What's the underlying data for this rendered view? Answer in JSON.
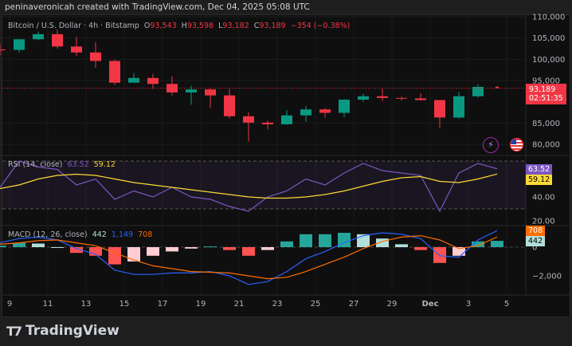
{
  "credit": "peninaveronicah created with TradingView.com, Dec 04, 2025 05:08 UTC",
  "symbol": {
    "name": "Bitcoin / U.S. Dollar · 4h · Bitstamp",
    "o_label": "O",
    "o": "93,543",
    "h_label": "H",
    "h": "93,598",
    "l_label": "L",
    "l": "93,182",
    "c_label": "C",
    "c": "93,189",
    "change": "−354 (−0.38%)"
  },
  "price_tag": {
    "price": "93,189",
    "countdown": "02:51:35"
  },
  "rsi_legend": {
    "label": "RSI (14, close)",
    "rsi": "63.52",
    "ma": "59.12"
  },
  "macd_legend": {
    "label": "MACD (12, 26, close)",
    "hist": "442",
    "macd": "1,149",
    "signal": "708"
  },
  "tags": {
    "rsi": "63.52",
    "rsi_ma": "59.12",
    "signal": "708",
    "hist": "442"
  },
  "logo": "TradingView",
  "colors": {
    "up": "#089981",
    "down": "#f23645",
    "rsi": "#7e57c2",
    "rsi_ma": "#fdd835",
    "macd": "#2962ff",
    "signal": "#ff6d00"
  },
  "icons": [
    "lightning-alert-icon",
    "us-flag-icon"
  ],
  "chart_data": [
    {
      "type": "candlestick",
      "title": "Bitcoin / U.S. Dollar · 4h · Bitstamp",
      "price_ticks": [
        "110,000",
        "105,000",
        "100,000",
        "95,000",
        "85,000",
        "80,000"
      ],
      "x_ticks": [
        "9",
        "11",
        "13",
        "15",
        "17",
        "19",
        "21",
        "23",
        "25",
        "27",
        "29",
        "Dec",
        "3",
        "5"
      ],
      "ylim": [
        80000,
        110000
      ],
      "dates": [
        "Nov 8",
        "Nov 9",
        "Nov 10",
        "Nov 11",
        "Nov 12",
        "Nov 13",
        "Nov 14",
        "Nov 15",
        "Nov 16",
        "Nov 17",
        "Nov 18",
        "Nov 19",
        "Nov 20",
        "Nov 21",
        "Nov 22",
        "Nov 23",
        "Nov 24",
        "Nov 25",
        "Nov 26",
        "Nov 27",
        "Nov 28",
        "Nov 29",
        "Nov 30",
        "Dec 1",
        "Dec 2",
        "Dec 3",
        "Dec 4"
      ],
      "ohlc": [
        [
          102300,
          103500,
          101000,
          102200
        ],
        [
          102200,
          104800,
          101500,
          104700
        ],
        [
          104700,
          106500,
          104500,
          105900
        ],
        [
          105900,
          107000,
          102500,
          103000
        ],
        [
          103000,
          105300,
          100800,
          101600
        ],
        [
          101600,
          104000,
          98000,
          99600
        ],
        [
          99600,
          99900,
          94000,
          94500
        ],
        [
          94500,
          96800,
          94500,
          95600
        ],
        [
          95600,
          96600,
          93000,
          94200
        ],
        [
          94200,
          96000,
          91500,
          92200
        ],
        [
          92200,
          93800,
          89300,
          92900
        ],
        [
          92900,
          93200,
          88500,
          91500
        ],
        [
          91500,
          93000,
          86100,
          86600
        ],
        [
          86600,
          87500,
          80600,
          85100
        ],
        [
          85100,
          85600,
          83500,
          84700
        ],
        [
          84700,
          88000,
          84600,
          86800
        ],
        [
          86800,
          89000,
          85300,
          88200
        ],
        [
          88200,
          88500,
          86300,
          87400
        ],
        [
          87400,
          90600,
          86400,
          90500
        ],
        [
          90500,
          91900,
          90000,
          91300
        ],
        [
          91300,
          93000,
          90200,
          90900
        ],
        [
          90900,
          91200,
          90300,
          90800
        ],
        [
          90800,
          92000,
          90300,
          90400
        ],
        [
          90400,
          90400,
          83800,
          86300
        ],
        [
          86300,
          92300,
          86000,
          91300
        ],
        [
          91300,
          94100,
          91000,
          93500
        ],
        [
          93543,
          93598,
          93182,
          93189
        ]
      ]
    },
    {
      "type": "line",
      "title": "RSI (14, close)",
      "yticks": [
        "40.00",
        "20.00"
      ],
      "bands": [
        70,
        30
      ],
      "series": [
        {
          "name": "RSI",
          "values": [
            48,
            70,
            65,
            63,
            50,
            55,
            38,
            45,
            40,
            48,
            40,
            38,
            32,
            28,
            40,
            45,
            55,
            50,
            60,
            68,
            62,
            60,
            58,
            28,
            60,
            68,
            63.52
          ]
        },
        {
          "name": "MA",
          "values": [
            47,
            50,
            55,
            58,
            59,
            58,
            55,
            52,
            50,
            48,
            46,
            44,
            42,
            40,
            39,
            39,
            40,
            42,
            45,
            49,
            53,
            56,
            57,
            53,
            52,
            55,
            59.12
          ]
        }
      ]
    },
    {
      "type": "line",
      "title": "MACD (12, 26, close)",
      "yticks": [
        "0",
        "−2,000"
      ],
      "series": [
        {
          "name": "MACD",
          "values": [
            300,
            600,
            700,
            500,
            -100,
            -500,
            -1600,
            -1900,
            -1900,
            -1800,
            -1800,
            -1700,
            -2000,
            -2600,
            -2400,
            -1700,
            -800,
            -300,
            300,
            800,
            1000,
            900,
            600,
            -600,
            -700,
            500,
            1149
          ]
        },
        {
          "name": "Signal",
          "values": [
            200,
            300,
            450,
            500,
            300,
            100,
            -400,
            -900,
            -1300,
            -1500,
            -1700,
            -1750,
            -1800,
            -2000,
            -2200,
            -2100,
            -1700,
            -1200,
            -700,
            -100,
            400,
            700,
            800,
            500,
            -100,
            100,
            708
          ]
        }
      ]
    }
  ]
}
